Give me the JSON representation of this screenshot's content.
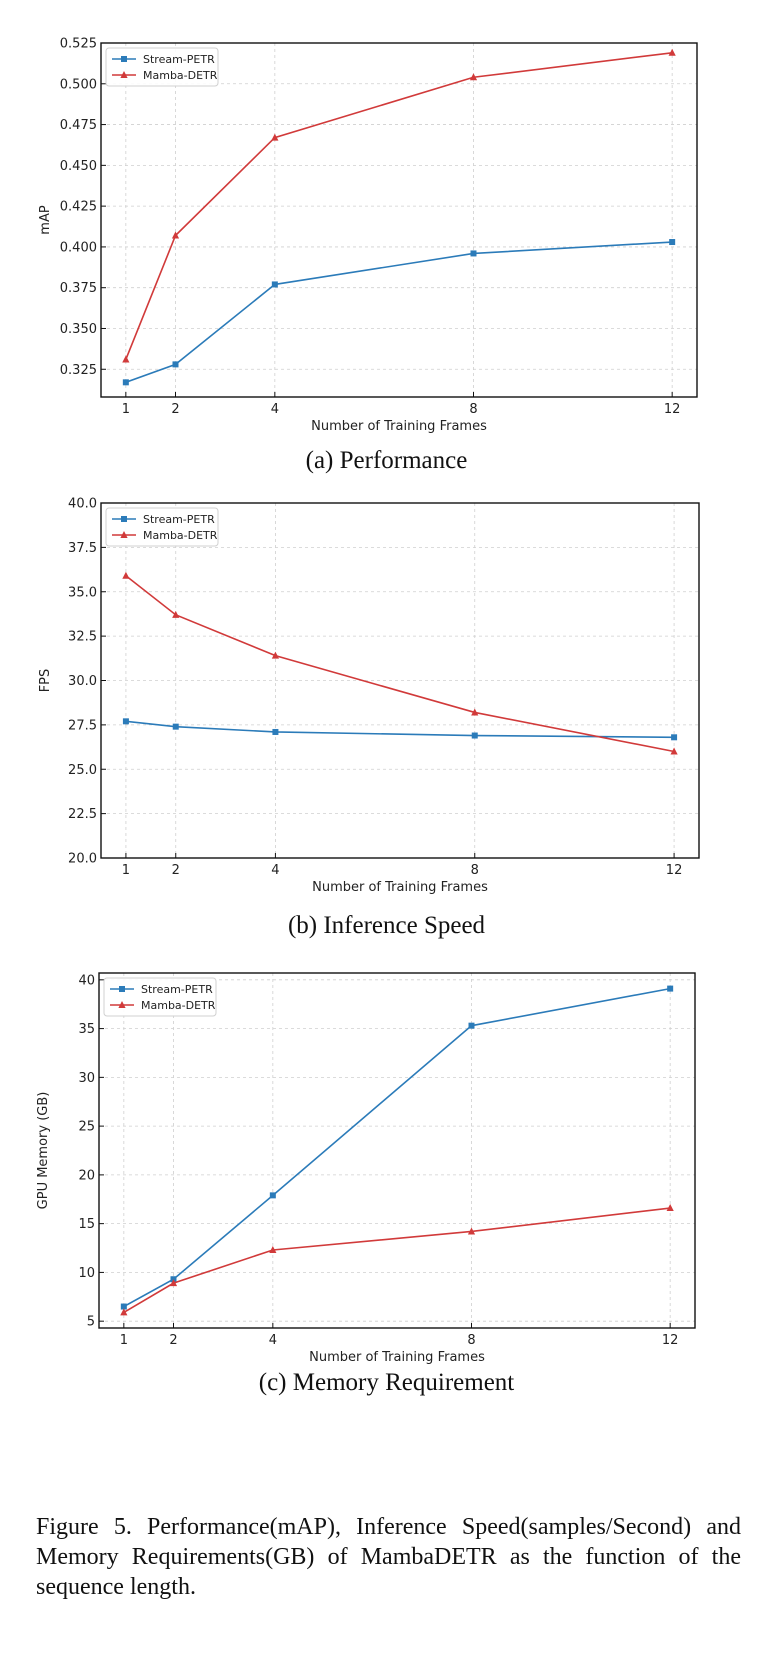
{
  "chart_data": [
    {
      "type": "line",
      "caption": "(a) Performance",
      "xlabel": "Number of Training Frames",
      "ylabel": "mAP",
      "x": [
        1,
        2,
        4,
        8,
        12
      ],
      "xticks": [
        "1",
        "2",
        "4",
        "8",
        "12"
      ],
      "xlim": [
        0.5,
        12.5
      ],
      "ylim": [
        0.308,
        0.525
      ],
      "yticks": [
        "0.325",
        "0.350",
        "0.375",
        "0.400",
        "0.425",
        "0.450",
        "0.475",
        "0.500",
        "0.525"
      ],
      "ytick_values": [
        0.325,
        0.35,
        0.375,
        0.4,
        0.425,
        0.45,
        0.475,
        0.5,
        0.525
      ],
      "grid": true,
      "legend_position": "top-left",
      "series": [
        {
          "name": "Stream-PETR",
          "color": "#2b7bb9",
          "marker": "square",
          "values": [
            0.317,
            0.328,
            0.377,
            0.396,
            0.403
          ]
        },
        {
          "name": "Mamba-DETR",
          "color": "#d13a3a",
          "marker": "triangle",
          "values": [
            0.331,
            0.407,
            0.467,
            0.504,
            0.519
          ]
        }
      ]
    },
    {
      "type": "line",
      "caption": "(b) Inference Speed",
      "xlabel": "Number of Training Frames",
      "ylabel": "FPS",
      "x": [
        1,
        2,
        4,
        8,
        12
      ],
      "xticks": [
        "1",
        "2",
        "4",
        "8",
        "12"
      ],
      "xlim": [
        0.5,
        12.5
      ],
      "ylim": [
        20.0,
        40.0
      ],
      "yticks": [
        "20.0",
        "22.5",
        "25.0",
        "27.5",
        "30.0",
        "32.5",
        "35.0",
        "37.5",
        "40.0"
      ],
      "ytick_values": [
        20,
        22.5,
        25,
        27.5,
        30,
        32.5,
        35,
        37.5,
        40
      ],
      "grid": true,
      "legend_position": "top-left",
      "series": [
        {
          "name": "Stream-PETR",
          "color": "#2b7bb9",
          "marker": "square",
          "values": [
            27.7,
            27.4,
            27.1,
            26.9,
            26.8
          ]
        },
        {
          "name": "Mamba-DETR",
          "color": "#d13a3a",
          "marker": "triangle",
          "values": [
            35.9,
            33.7,
            31.4,
            28.2,
            26.0
          ]
        }
      ]
    },
    {
      "type": "line",
      "caption": "(c) Memory Requirement",
      "xlabel": "Number of Training Frames",
      "ylabel": "GPU Memory (GB)",
      "x": [
        1,
        2,
        4,
        8,
        12
      ],
      "xticks": [
        "1",
        "2",
        "4",
        "8",
        "12"
      ],
      "xlim": [
        0.5,
        12.5
      ],
      "ylim": [
        4.3,
        40.7
      ],
      "yticks": [
        "5",
        "10",
        "15",
        "20",
        "25",
        "30",
        "35",
        "40"
      ],
      "ytick_values": [
        5,
        10,
        15,
        20,
        25,
        30,
        35,
        40
      ],
      "grid": true,
      "legend_position": "top-left",
      "series": [
        {
          "name": "Stream-PETR",
          "color": "#2b7bb9",
          "marker": "square",
          "values": [
            6.5,
            9.3,
            17.9,
            35.3,
            39.1
          ]
        },
        {
          "name": "Mamba-DETR",
          "color": "#d13a3a",
          "marker": "triangle",
          "values": [
            5.9,
            8.9,
            12.3,
            14.2,
            16.6
          ]
        }
      ]
    }
  ],
  "figure_caption": "Figure 5.  Performance(mAP), Inference Speed(samples/Second) and Memory Requirements(GB) of MambaDETR as the function of the sequence length."
}
